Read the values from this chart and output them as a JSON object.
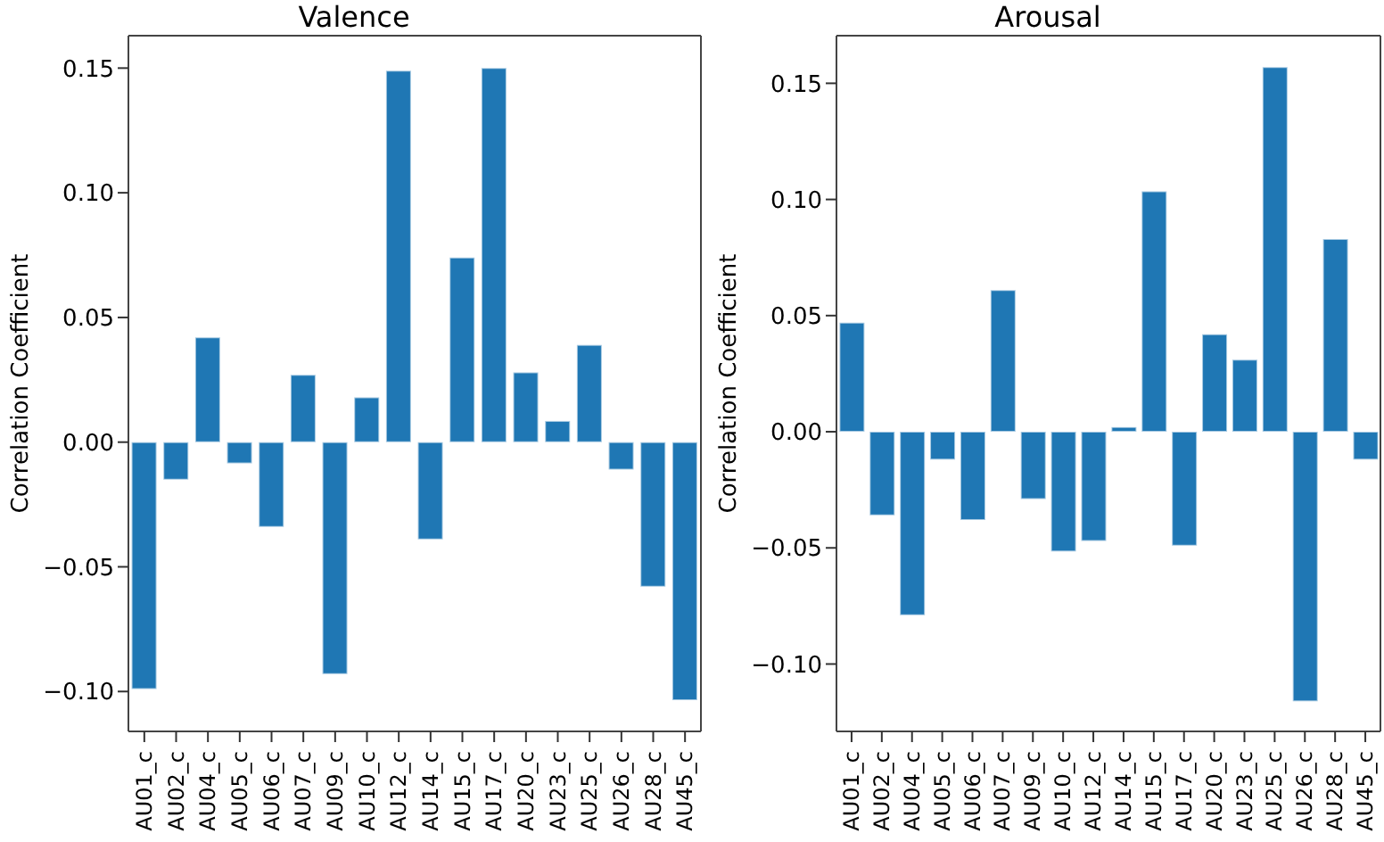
{
  "chart_data": [
    {
      "type": "bar",
      "title": "Valence",
      "ylabel": "Correlation Coefficient",
      "categories": [
        "AU01_c",
        "AU02_c",
        "AU04_c",
        "AU05_c",
        "AU06_c",
        "AU07_c",
        "AU09_c",
        "AU10_c",
        "AU12_c",
        "AU14_c",
        "AU15_c",
        "AU17_c",
        "AU20_c",
        "AU23_c",
        "AU25_c",
        "AU26_c",
        "AU28_c",
        "AU45_c"
      ],
      "values": [
        -0.099,
        -0.015,
        0.042,
        -0.0085,
        -0.034,
        0.027,
        -0.093,
        0.018,
        0.149,
        -0.039,
        0.074,
        0.15,
        0.028,
        0.0085,
        0.039,
        -0.011,
        -0.058,
        -0.1035
      ],
      "color": "#1f77b4",
      "ylim": [
        -0.116,
        0.163
      ],
      "yticks": [
        {
          "value": -0.1,
          "label": "−0.10"
        },
        {
          "value": -0.05,
          "label": "−0.05"
        },
        {
          "value": 0,
          "label": "0.00"
        },
        {
          "value": 0.05,
          "label": "0.05"
        },
        {
          "value": 0.1,
          "label": "0.10"
        },
        {
          "value": 0.15,
          "label": "0.15"
        }
      ],
      "grid": false,
      "legend": false
    },
    {
      "type": "bar",
      "title": "Arousal",
      "ylabel": "Correlation Coefficient",
      "categories": [
        "AU01_c",
        "AU02_c",
        "AU04_c",
        "AU05_c",
        "AU06_c",
        "AU07_c",
        "AU09_c",
        "AU10_c",
        "AU12_c",
        "AU14_c",
        "AU15_c",
        "AU17_c",
        "AU20_c",
        "AU23_c",
        "AU25_c",
        "AU26_c",
        "AU28_c",
        "AU45_c"
      ],
      "values": [
        0.047,
        -0.036,
        -0.079,
        -0.012,
        -0.038,
        0.061,
        -0.029,
        -0.0515,
        -0.047,
        0.002,
        0.1035,
        -0.049,
        0.042,
        0.031,
        0.157,
        -0.116,
        0.083,
        -0.012
      ],
      "color": "#1f77b4",
      "ylim": [
        -0.129,
        0.1705
      ],
      "yticks": [
        {
          "value": -0.1,
          "label": "−0.10"
        },
        {
          "value": -0.05,
          "label": "−0.05"
        },
        {
          "value": 0,
          "label": "0.00"
        },
        {
          "value": 0.05,
          "label": "0.05"
        },
        {
          "value": 0.1,
          "label": "0.10"
        },
        {
          "value": 0.15,
          "label": "0.15"
        }
      ],
      "grid": false,
      "legend": false
    }
  ]
}
